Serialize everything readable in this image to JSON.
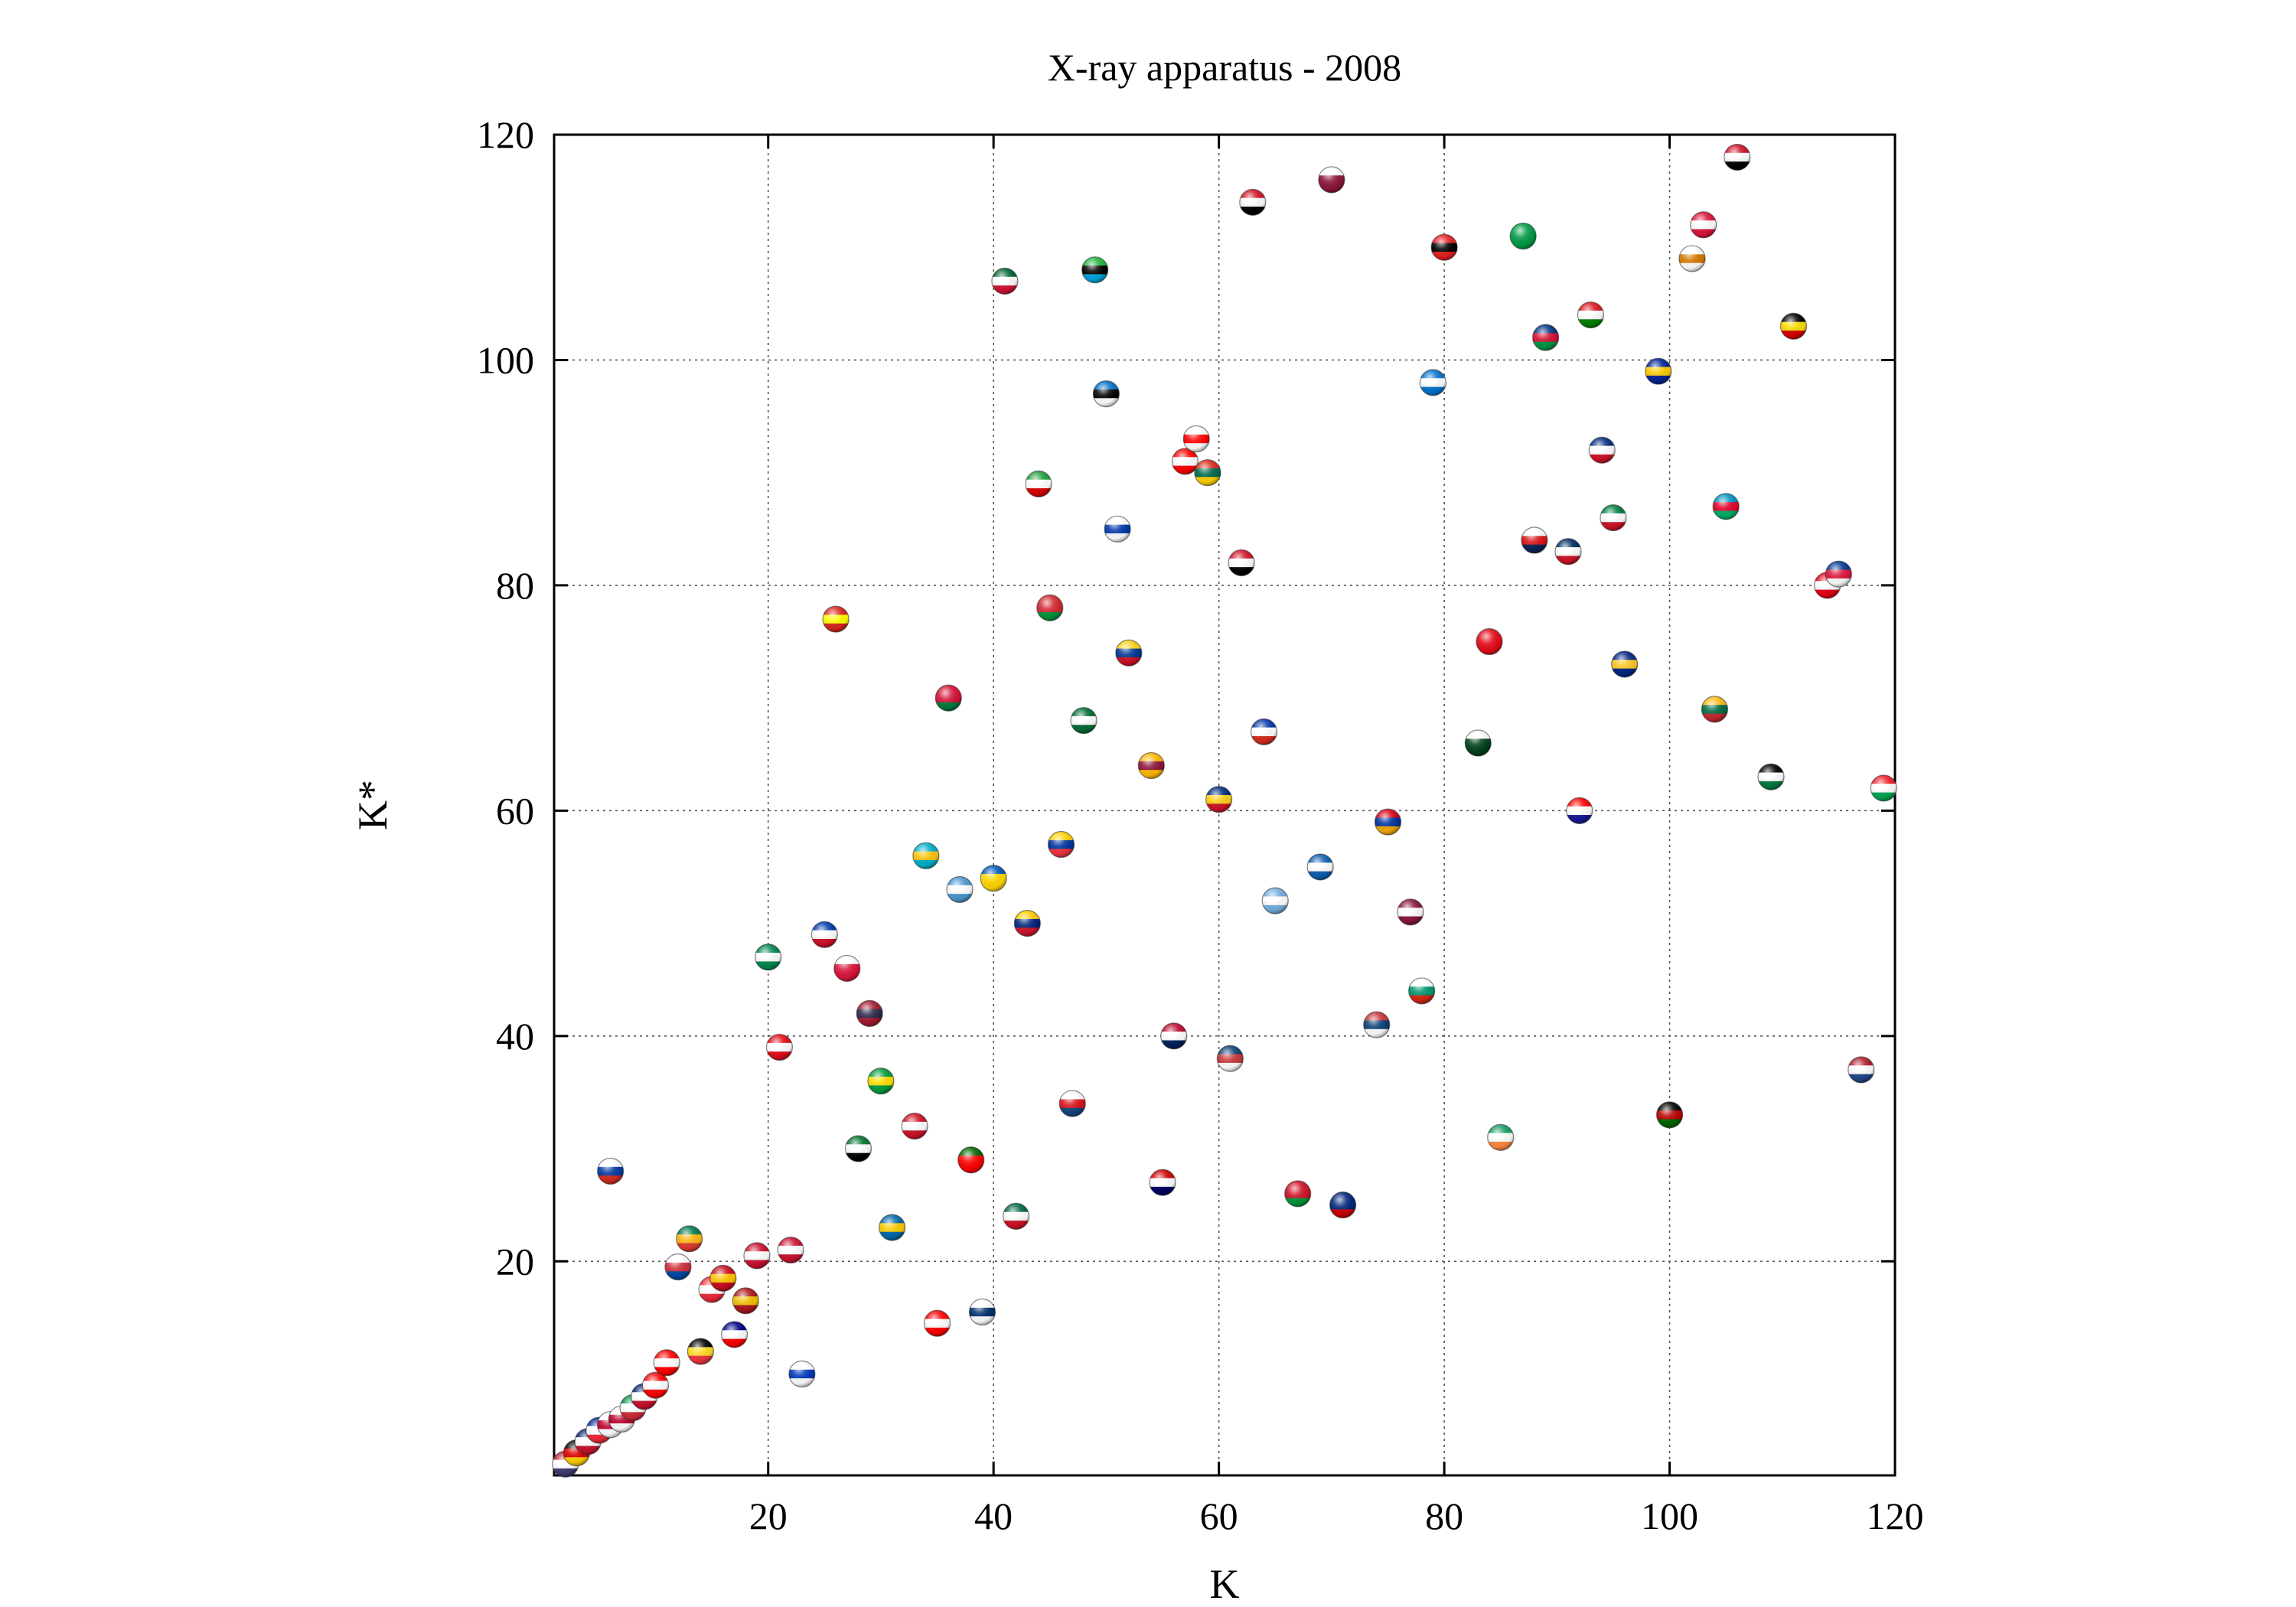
{
  "chart_data": {
    "type": "scatter",
    "title": "X-ray apparatus - 2008",
    "xlabel": "K",
    "ylabel": "K*",
    "xlim": [
      1,
      120
    ],
    "ylim": [
      1,
      120
    ],
    "x_ticks": [
      20,
      40,
      60,
      80,
      100,
      120
    ],
    "y_ticks": [
      20,
      40,
      60,
      80,
      100,
      120
    ],
    "grid": true,
    "legend": "none",
    "marker": "country flag spheres",
    "points": [
      {
        "x": 2,
        "y": 2,
        "colors": [
          "#b22234",
          "#ffffff",
          "#3c3b6e"
        ]
      },
      {
        "x": 3,
        "y": 3,
        "colors": [
          "#000000",
          "#dd0000",
          "#ffce00"
        ]
      },
      {
        "x": 4,
        "y": 4,
        "colors": [
          "#012169",
          "#ffffff",
          "#c8102e"
        ]
      },
      {
        "x": 5,
        "y": 5,
        "colors": [
          "#002395",
          "#ffffff",
          "#ed2939"
        ]
      },
      {
        "x": 6,
        "y": 5.5,
        "colors": [
          "#ffffff",
          "#bc002d",
          "#ffffff"
        ]
      },
      {
        "x": 7,
        "y": 6,
        "colors": [
          "#ffffff",
          "#bc002d",
          "#ffffff"
        ]
      },
      {
        "x": 8,
        "y": 7,
        "colors": [
          "#009246",
          "#ffffff",
          "#ce2b37"
        ]
      },
      {
        "x": 9,
        "y": 8,
        "colors": [
          "#012169",
          "#ffffff",
          "#c8102e"
        ]
      },
      {
        "x": 10,
        "y": 9,
        "colors": [
          "#ff0000",
          "#ffffff",
          "#ff0000"
        ]
      },
      {
        "x": 11,
        "y": 11,
        "colors": [
          "#ff0000",
          "#ffffff",
          "#ff0000"
        ]
      },
      {
        "x": 12,
        "y": 19.5,
        "colors": [
          "#ffffff",
          "#cd2e3a",
          "#0047a0"
        ]
      },
      {
        "x": 13,
        "y": 22,
        "colors": [
          "#007a4d",
          "#ffb612",
          "#de3831"
        ]
      },
      {
        "x": 14,
        "y": 12,
        "colors": [
          "#000000",
          "#fdda24",
          "#ef3340"
        ]
      },
      {
        "x": 15,
        "y": 17.5,
        "colors": [
          "#ed2939",
          "#ffffff",
          "#ed2939"
        ]
      },
      {
        "x": 16,
        "y": 18.5,
        "colors": [
          "#c60b1e",
          "#ffc400",
          "#c60b1e"
        ]
      },
      {
        "x": 17,
        "y": 13.5,
        "colors": [
          "#00008b",
          "#ffffff",
          "#ff0000"
        ]
      },
      {
        "x": 18,
        "y": 16.5,
        "colors": [
          "#aa151b",
          "#f1bf00",
          "#aa151b"
        ]
      },
      {
        "x": 19,
        "y": 20.5,
        "colors": [
          "#c8102e",
          "#ffffff",
          "#c8102e"
        ]
      },
      {
        "x": 20,
        "y": 47,
        "colors": [
          "#008751",
          "#ffffff",
          "#008751"
        ]
      },
      {
        "x": 21,
        "y": 39,
        "colors": [
          "#e30a17",
          "#ffffff",
          "#e30a17"
        ]
      },
      {
        "x": 22,
        "y": 21,
        "colors": [
          "#c8102e",
          "#ffffff",
          "#c8102e"
        ]
      },
      {
        "x": 23,
        "y": 10,
        "colors": [
          "#ffffff",
          "#0038b8",
          "#ffffff"
        ]
      },
      {
        "x": 25,
        "y": 49,
        "colors": [
          "#0038a8",
          "#ffffff",
          "#ce1126"
        ]
      },
      {
        "x": 26,
        "y": 77,
        "colors": [
          "#da251d",
          "#ffff00",
          "#da251d"
        ]
      },
      {
        "x": 27,
        "y": 46,
        "colors": [
          "#ffffff",
          "#dc143c",
          "#dc143c"
        ]
      },
      {
        "x": 28,
        "y": 30,
        "colors": [
          "#00732f",
          "#ffffff",
          "#000000"
        ]
      },
      {
        "x": 29,
        "y": 42,
        "colors": [
          "#a51931",
          "#2d2a4a",
          "#a51931"
        ]
      },
      {
        "x": 30,
        "y": 36,
        "colors": [
          "#009c3b",
          "#ffdf00",
          "#009c3b"
        ]
      },
      {
        "x": 31,
        "y": 23,
        "colors": [
          "#006aa7",
          "#fecc00",
          "#006aa7"
        ]
      },
      {
        "x": 33,
        "y": 32,
        "colors": [
          "#ce1126",
          "#ffffff",
          "#ce1126"
        ]
      },
      {
        "x": 34,
        "y": 56,
        "colors": [
          "#00afca",
          "#fec50c",
          "#00afca"
        ]
      },
      {
        "x": 35,
        "y": 14.5,
        "colors": [
          "#ff0000",
          "#ffffff",
          "#ff0000"
        ]
      },
      {
        "x": 36,
        "y": 70,
        "colors": [
          "#d21034",
          "#d21034",
          "#007a3d"
        ]
      },
      {
        "x": 37,
        "y": 53,
        "colors": [
          "#4997d0",
          "#ffffff",
          "#4997d0"
        ]
      },
      {
        "x": 38,
        "y": 29,
        "colors": [
          "#006600",
          "#ff0000",
          "#ff0000"
        ]
      },
      {
        "x": 39,
        "y": 15.5,
        "colors": [
          "#ffffff",
          "#002f6c",
          "#ffffff"
        ]
      },
      {
        "x": 40,
        "y": 54,
        "colors": [
          "#0057b7",
          "#ffd700",
          "#ffd700"
        ]
      },
      {
        "x": 41,
        "y": 107,
        "colors": [
          "#006233",
          "#ffffff",
          "#d21034"
        ]
      },
      {
        "x": 42,
        "y": 24,
        "colors": [
          "#006847",
          "#ffffff",
          "#ce1126"
        ]
      },
      {
        "x": 43,
        "y": 50,
        "colors": [
          "#ffcc00",
          "#00247d",
          "#cf142b"
        ]
      },
      {
        "x": 44,
        "y": 89,
        "colors": [
          "#239f40",
          "#ffffff",
          "#da0000"
        ]
      },
      {
        "x": 45,
        "y": 78,
        "colors": [
          "#d22630",
          "#d22630",
          "#00953b"
        ]
      },
      {
        "x": 46,
        "y": 57,
        "colors": [
          "#ffd100",
          "#0033a0",
          "#ef3340"
        ]
      },
      {
        "x": 47,
        "y": 34,
        "colors": [
          "#ffffff",
          "#d7141a",
          "#11457e"
        ]
      },
      {
        "x": 48,
        "y": 68,
        "colors": [
          "#006c35",
          "#ffffff",
          "#006c35"
        ]
      },
      {
        "x": 49,
        "y": 108,
        "colors": [
          "#1eb53a",
          "#000000",
          "#00a3dd"
        ]
      },
      {
        "x": 50,
        "y": 97,
        "colors": [
          "#0072c6",
          "#000000",
          "#ffffff"
        ]
      },
      {
        "x": 51,
        "y": 85,
        "colors": [
          "#ffffff",
          "#0038a8",
          "#ffffff"
        ]
      },
      {
        "x": 52,
        "y": 74,
        "colors": [
          "#fcd116",
          "#003893",
          "#ce1126"
        ]
      },
      {
        "x": 54,
        "y": 64,
        "colors": [
          "#ffb700",
          "#8d153a",
          "#ffb700"
        ]
      },
      {
        "x": 55,
        "y": 27,
        "colors": [
          "#cc0001",
          "#ffffff",
          "#010066"
        ]
      },
      {
        "x": 56,
        "y": 40,
        "colors": [
          "#ba0c2f",
          "#ffffff",
          "#00205b"
        ]
      },
      {
        "x": 57,
        "y": 91,
        "colors": [
          "#ff0000",
          "#ffffff",
          "#ff0000"
        ]
      },
      {
        "x": 58,
        "y": 93,
        "colors": [
          "#ffffff",
          "#ff0000",
          "#ffffff"
        ]
      },
      {
        "x": 59,
        "y": 90,
        "colors": [
          "#da291c",
          "#006a4e",
          "#ffd100"
        ]
      },
      {
        "x": 60,
        "y": 61,
        "colors": [
          "#002b7f",
          "#fcd116",
          "#ce1126"
        ]
      },
      {
        "x": 61,
        "y": 38,
        "colors": [
          "#0c4076",
          "#c6363c",
          "#ffffff"
        ]
      },
      {
        "x": 62,
        "y": 82,
        "colors": [
          "#ce1126",
          "#ffffff",
          "#000000"
        ]
      },
      {
        "x": 63,
        "y": 114,
        "colors": [
          "#ce1126",
          "#ffffff",
          "#000000"
        ]
      },
      {
        "x": 64,
        "y": 67,
        "colors": [
          "#0039a6",
          "#ffffff",
          "#d52b1e"
        ]
      },
      {
        "x": 65,
        "y": 52,
        "colors": [
          "#74acdf",
          "#ffffff",
          "#74acdf"
        ]
      },
      {
        "x": 67,
        "y": 26,
        "colors": [
          "#ce1126",
          "#ce1126",
          "#009639"
        ]
      },
      {
        "x": 69,
        "y": 55,
        "colors": [
          "#0d5eaf",
          "#ffffff",
          "#0d5eaf"
        ]
      },
      {
        "x": 70,
        "y": 116,
        "colors": [
          "#ffffff",
          "#8a1538",
          "#8a1538"
        ]
      },
      {
        "x": 71,
        "y": 25,
        "colors": [
          "#00247d",
          "#00247d",
          "#cc0000"
        ]
      },
      {
        "x": 74,
        "y": 41,
        "colors": [
          "#c6363c",
          "#0c4076",
          "#ffffff"
        ]
      },
      {
        "x": 75,
        "y": 59,
        "colors": [
          "#d90012",
          "#0033a0",
          "#f2a800"
        ]
      },
      {
        "x": 77,
        "y": 51,
        "colors": [
          "#8a1538",
          "#ffffff",
          "#8a1538"
        ]
      },
      {
        "x": 78,
        "y": 44,
        "colors": [
          "#ffffff",
          "#00966e",
          "#d62612"
        ]
      },
      {
        "x": 80,
        "y": 110,
        "colors": [
          "#e41e20",
          "#000000",
          "#e41e20"
        ]
      },
      {
        "x": 79,
        "y": 98,
        "colors": [
          "#0073cf",
          "#ffffff",
          "#0073cf"
        ]
      },
      {
        "x": 83,
        "y": 66,
        "colors": [
          "#ffffff",
          "#01411c",
          "#01411c"
        ]
      },
      {
        "x": 84,
        "y": 75,
        "colors": [
          "#e30a17",
          "#e30a17",
          "#e30a17"
        ]
      },
      {
        "x": 85,
        "y": 31,
        "colors": [
          "#169b62",
          "#ffffff",
          "#ff883e"
        ]
      },
      {
        "x": 87,
        "y": 111,
        "colors": [
          "#009a44",
          "#009a44",
          "#009a44"
        ]
      },
      {
        "x": 88,
        "y": 84,
        "colors": [
          "#ffffff",
          "#da121a",
          "#072357"
        ]
      },
      {
        "x": 89,
        "y": 102,
        "colors": [
          "#003580",
          "#d21034",
          "#009543"
        ]
      },
      {
        "x": 91,
        "y": 83,
        "colors": [
          "#002d62",
          "#ffffff",
          "#ce1126"
        ]
      },
      {
        "x": 92,
        "y": 60,
        "colors": [
          "#ff0000",
          "#ffffff",
          "#171796"
        ]
      },
      {
        "x": 93,
        "y": 104,
        "colors": [
          "#db161b",
          "#ffffff",
          "#008000"
        ]
      },
      {
        "x": 94,
        "y": 92,
        "colors": [
          "#002b7f",
          "#ffffff",
          "#ce1126"
        ]
      },
      {
        "x": 95,
        "y": 86,
        "colors": [
          "#007a3d",
          "#ffffff",
          "#ce1126"
        ]
      },
      {
        "x": 96,
        "y": 73,
        "colors": [
          "#00267f",
          "#ffc726",
          "#00267f"
        ]
      },
      {
        "x": 99,
        "y": 99,
        "colors": [
          "#002395",
          "#fecb00",
          "#002395"
        ]
      },
      {
        "x": 100,
        "y": 33,
        "colors": [
          "#000000",
          "#bb0000",
          "#006600"
        ]
      },
      {
        "x": 102,
        "y": 109,
        "colors": [
          "#ffffff",
          "#d57800",
          "#ffffff"
        ]
      },
      {
        "x": 103,
        "y": 112,
        "colors": [
          "#dc143c",
          "#ffffff",
          "#dc143c"
        ]
      },
      {
        "x": 104,
        "y": 69,
        "colors": [
          "#fdb913",
          "#006a44",
          "#c1272d"
        ]
      },
      {
        "x": 105,
        "y": 87,
        "colors": [
          "#0092bc",
          "#e4002b",
          "#00af66"
        ]
      },
      {
        "x": 106,
        "y": 118,
        "colors": [
          "#ce1126",
          "#ffffff",
          "#000000"
        ]
      },
      {
        "x": 109,
        "y": 63,
        "colors": [
          "#000000",
          "#ffffff",
          "#007a3d"
        ]
      },
      {
        "x": 111,
        "y": 103,
        "colors": [
          "#000000",
          "#fcdc04",
          "#d90000"
        ]
      },
      {
        "x": 114,
        "y": 80,
        "colors": [
          "#e70013",
          "#ffffff",
          "#e70013"
        ]
      },
      {
        "x": 115,
        "y": 81,
        "colors": [
          "#003893",
          "#dc143c",
          "#ffffff"
        ]
      },
      {
        "x": 117,
        "y": 37,
        "colors": [
          "#ae1c28",
          "#ffffff",
          "#21468b"
        ]
      },
      {
        "x": 119,
        "y": 62,
        "colors": [
          "#ed1c24",
          "#ffffff",
          "#00a651"
        ]
      },
      {
        "x": 6,
        "y": 28,
        "colors": [
          "#ffffff",
          "#0039a6",
          "#d52b1e"
        ]
      }
    ]
  }
}
